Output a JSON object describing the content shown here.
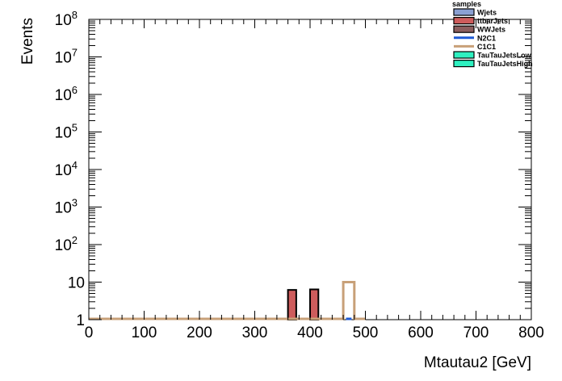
{
  "chart_data": {
    "type": "bar",
    "title": "",
    "xlabel": "Mtautau2 [GeV]",
    "ylabel": "Events",
    "xlim": [
      0,
      800
    ],
    "ylim": [
      1,
      100000000
    ],
    "yscale": "log",
    "grid": false,
    "legend_position": "top-right",
    "legend_title": "samples",
    "x_ticks": [
      0,
      100,
      200,
      300,
      400,
      500,
      600,
      700,
      800
    ],
    "y_ticks": [
      {
        "value": 1,
        "label": "1"
      },
      {
        "value": 10,
        "label": "10"
      },
      {
        "value": 100,
        "label": "10",
        "exp": "2"
      },
      {
        "value": 1000,
        "label": "10",
        "exp": "3"
      },
      {
        "value": 10000,
        "label": "10",
        "exp": "4"
      },
      {
        "value": 100000,
        "label": "10",
        "exp": "5"
      },
      {
        "value": 1000000,
        "label": "10",
        "exp": "6"
      },
      {
        "value": 10000000,
        "label": "10",
        "exp": "7"
      },
      {
        "value": 100000000,
        "label": "10",
        "exp": "8"
      }
    ],
    "series": [
      {
        "name": "Wjets",
        "style": "fill",
        "fill": "#8aa0d2",
        "stroke": "#000000",
        "bins": []
      },
      {
        "name": "ttbarJets",
        "style": "fill",
        "fill": "#cd5c5c",
        "stroke": "#000000",
        "bins": [
          {
            "x0": 360,
            "x1": 375,
            "y": 6.2
          },
          {
            "x0": 400,
            "x1": 415,
            "y": 6.4
          }
        ]
      },
      {
        "name": "WWJets",
        "style": "fill",
        "fill": "#8b5e5e",
        "stroke": "#000000",
        "bins": []
      },
      {
        "name": "N2C1",
        "style": "line",
        "stroke": "#1f5bd6",
        "bins": [
          {
            "x0": 465,
            "x1": 475,
            "y": 1
          }
        ]
      },
      {
        "name": "C1C1",
        "style": "line",
        "stroke": "#c8a078",
        "bins": [
          {
            "x0": 0,
            "x1": 460,
            "y": 1
          },
          {
            "x0": 460,
            "x1": 480,
            "y": 10
          },
          {
            "x0": 480,
            "x1": 500,
            "y": 1
          }
        ]
      },
      {
        "name": "TauTauJetsLow",
        "style": "fill",
        "fill": "#2ef0c0",
        "stroke": "#000000",
        "bins": []
      },
      {
        "name": "TauTauJetsHigh",
        "style": "fill",
        "fill": "#2ef0c0",
        "stroke": "#000000",
        "bins": []
      }
    ]
  }
}
